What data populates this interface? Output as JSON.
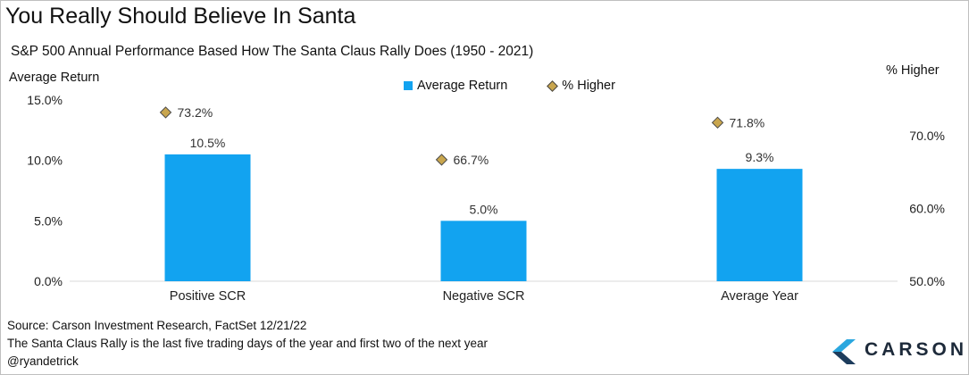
{
  "title": "You Really Should Believe In Santa",
  "subtitle": "S&P 500 Annual Performance Based How The Santa Claus Rally Does (1950 - 2021)",
  "footer": {
    "source": "Source: Carson Investment Research, FactSet 12/21/22",
    "note": "The Santa Claus Rally is the last five trading days of the year and first two of the next year",
    "handle": "@ryandetrick"
  },
  "logo": {
    "text": "CARSON",
    "icon": "carson-chevron-icon"
  },
  "colors": {
    "bar": "#12a3f0",
    "marker": "#c9a64e",
    "marker_border": "#4a4a4a",
    "grid": "#d9d9d9"
  },
  "chart_data": {
    "type": "bar",
    "categories": [
      "Positive SCR",
      "Negative SCR",
      "Average Year"
    ],
    "series": [
      {
        "name": "Average Return",
        "type": "bar",
        "axis": "left",
        "values": [
          10.5,
          5.0,
          9.3
        ],
        "labels": [
          "10.5%",
          "5.0%",
          "9.3%"
        ]
      },
      {
        "name": "% Higher",
        "type": "scatter",
        "marker": "diamond",
        "axis": "right",
        "values": [
          73.2,
          66.7,
          71.8
        ],
        "labels": [
          "73.2%",
          "66.7%",
          "71.8%"
        ]
      }
    ],
    "ylabel": "Average Return",
    "ylim": [
      0,
      15
    ],
    "yticks": [
      "0.0%",
      "5.0%",
      "10.0%",
      "15.0%"
    ],
    "y2label": "% Higher",
    "y2lim": [
      50,
      70
    ],
    "y2ticks": [
      "50.0%",
      "60.0%",
      "70.0%"
    ],
    "legend": "top-center",
    "grid": false
  }
}
